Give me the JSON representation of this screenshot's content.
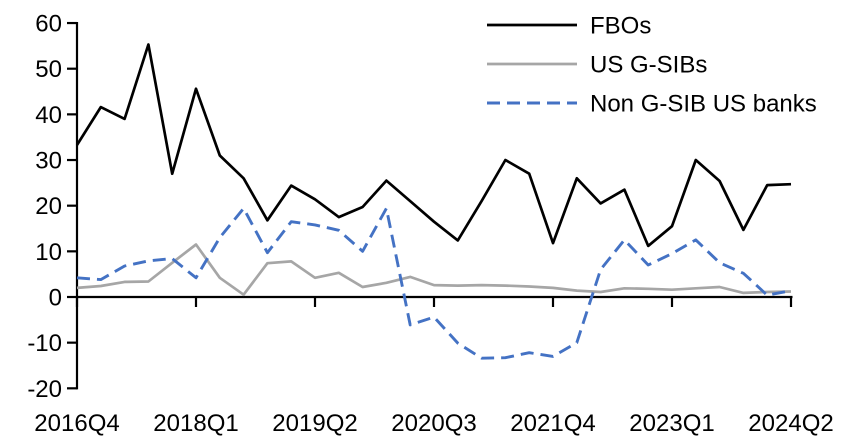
{
  "chart_data": {
    "type": "line",
    "title": "",
    "xlabel": "",
    "ylabel": "",
    "ylim": [
      -20,
      60
    ],
    "y_ticks": [
      60,
      50,
      40,
      30,
      20,
      10,
      0,
      -10,
      -20
    ],
    "grid": "off",
    "legend_position": "top-right",
    "axis_color": "#000000",
    "x_categories": [
      "2016Q4",
      "2017Q1",
      "2017Q2",
      "2017Q3",
      "2017Q4",
      "2018Q1",
      "2018Q2",
      "2018Q3",
      "2018Q4",
      "2019Q1",
      "2019Q2",
      "2019Q3",
      "2019Q4",
      "2020Q1",
      "2020Q2",
      "2020Q3",
      "2020Q4",
      "2021Q1",
      "2021Q2",
      "2021Q3",
      "2021Q4",
      "2022Q1",
      "2022Q2",
      "2022Q3",
      "2022Q4",
      "2023Q1",
      "2023Q2",
      "2023Q3",
      "2023Q4",
      "2024Q1",
      "2024Q2"
    ],
    "x_tick_indices": [
      0,
      5,
      10,
      15,
      20,
      25,
      30
    ],
    "x_tick_labels": [
      "2016Q4",
      "2018Q1",
      "2019Q2",
      "2020Q3",
      "2021Q4",
      "2023Q1",
      "2024Q2"
    ],
    "series": [
      {
        "name": "FBOs",
        "color": "#000000",
        "style": "solid",
        "values": [
          33.3,
          41.6,
          39.0,
          55.3,
          27.0,
          45.6,
          31.0,
          26.0,
          16.8,
          24.4,
          21.4,
          17.5,
          19.7,
          25.5,
          21.0,
          16.5,
          12.4,
          21.0,
          30.0,
          27.0,
          11.8,
          26.0,
          20.5,
          23.5,
          11.2,
          15.5,
          30.0,
          25.4,
          14.7,
          24.5,
          24.7
        ]
      },
      {
        "name": "US G-SIBs",
        "color": "#A6A6A6",
        "style": "solid",
        "values": [
          2.0,
          2.4,
          3.3,
          3.4,
          7.5,
          11.5,
          4.2,
          0.5,
          7.4,
          7.8,
          4.2,
          5.3,
          2.2,
          3.1,
          4.4,
          2.6,
          2.5,
          2.6,
          2.5,
          2.3,
          2.0,
          1.4,
          1.1,
          1.9,
          1.8,
          1.6,
          1.9,
          2.2,
          0.9,
          1.1,
          1.2
        ]
      },
      {
        "name": "Non G-SIB US banks",
        "color": "#4472C4",
        "style": "dashed",
        "values": [
          4.2,
          3.8,
          6.8,
          7.9,
          8.4,
          4.2,
          13.0,
          19.4,
          9.7,
          16.5,
          15.8,
          14.6,
          10.0,
          19.4,
          -6.1,
          -4.4,
          -10.1,
          -13.4,
          -13.3,
          -12.2,
          -13.0,
          -10.0,
          6.0,
          12.5,
          7.0,
          9.5,
          12.5,
          7.5,
          5.2,
          0.4,
          1.4
        ]
      }
    ]
  }
}
